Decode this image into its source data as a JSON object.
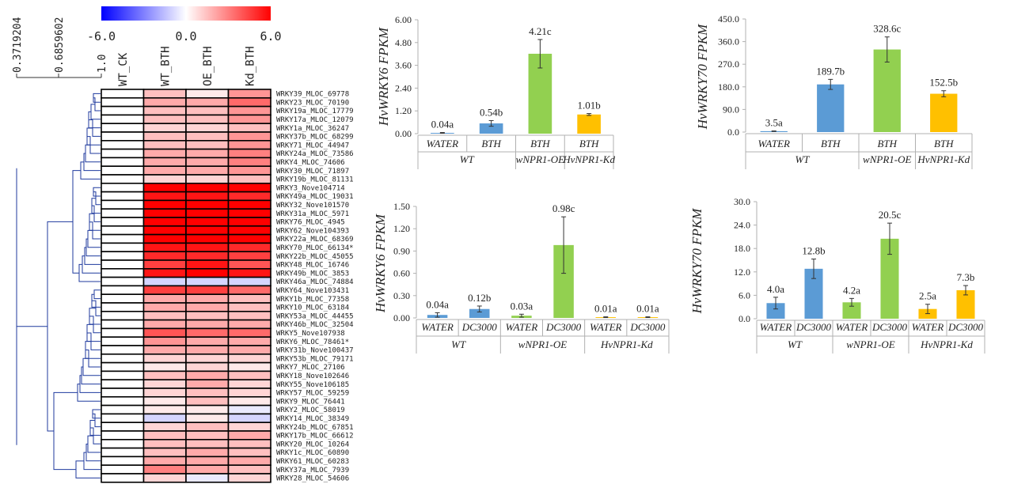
{
  "heatmap": {
    "colorbar_ticks": [
      "-6.0",
      "0.0",
      "6.0"
    ],
    "dendro_ticks": [
      "0.3719204",
      "0.6859602",
      "1.0"
    ],
    "columns": [
      "WT_CK",
      "WT_BTH",
      "OE_BTH",
      "Kd_BTH"
    ],
    "rows": [
      "WRKY39_MLOC_69778",
      "WRKY23_MLOC_70190",
      "WRKY19a_MLOC_17779",
      "WRKY17a_MLOC_12079",
      "WRKY1a_MLOC_36247",
      "WRKY37b_MLOC_68299",
      "WRKY71_MLOC_44947",
      "WRKY24a_MLOC_73586",
      "WRKY4_MLOC_74606",
      "WRKY30_MLOC_71897",
      "WRKY19b_MLOC_81131",
      "WRKY3_Nove104714",
      "WRKY49a_MLOC_19031",
      "WRKY32_Nove101570",
      "WRKY31a_MLOC_5971",
      "WRKY76_MLOC_4945",
      "WRKY62_Nove104393",
      "WRKY22a_MLOC_68369",
      "WRKY70_MLOC_66134*",
      "WRKY22b_MLOC_45055",
      "WRKY48_MLOC_16746",
      "WRKY49b_MLOC_3853",
      "WRKY46a_MLOC_74884",
      "WRKY64_Nove103431",
      "WRKY1b_MLOC_77358",
      "WRKY10_MLOC_63184",
      "WRKY53a_MLOC_44455",
      "WRKY46b_MLOC_32504",
      "WRKY5_Nove107938",
      "WRKY6_MLOC_78461*",
      "WRKY31b_Nove100437",
      "WRKY53b_MLOC_79171",
      "WRKY7_MLOC_27106",
      "WRKY18_Nove102646",
      "WRKY55_Nove106185",
      "WRKY57_MLOC_59259",
      "WRKY9_MLOC_76441",
      "WRKY2_MLOC_58019",
      "WRKY14_MLOC_38349",
      "WRKY24b_MLOC_67851",
      "WRKY17b_MLOC_66612",
      "WRKY20_MLOC_10264",
      "WRKY1c_MLOC_60890",
      "WRKY61_MLOC_60283",
      "WRKY37a_MLOC_7939",
      "WRKY28_MLOC_54606"
    ],
    "values": [
      [
        0,
        1.5,
        0.5,
        2.5
      ],
      [
        0,
        2.0,
        2.0,
        3.5
      ],
      [
        0,
        1.5,
        1.5,
        2.5
      ],
      [
        0,
        1.5,
        1.5,
        2.5
      ],
      [
        0,
        1.0,
        1.0,
        1.5
      ],
      [
        0,
        1.5,
        1.5,
        2.5
      ],
      [
        0,
        1.5,
        1.5,
        2.5
      ],
      [
        0,
        2.0,
        2.0,
        3.0
      ],
      [
        0,
        2.0,
        2.0,
        3.0
      ],
      [
        0,
        2.0,
        2.0,
        2.5
      ],
      [
        0,
        1.0,
        1.0,
        1.5
      ],
      [
        0,
        6.0,
        6.0,
        6.0
      ],
      [
        0,
        5.5,
        5.5,
        5.0
      ],
      [
        0,
        6.0,
        6.0,
        6.0
      ],
      [
        0,
        6.0,
        6.0,
        6.0
      ],
      [
        0,
        6.0,
        6.0,
        6.0
      ],
      [
        0,
        6.0,
        6.0,
        6.0
      ],
      [
        0,
        6.0,
        6.0,
        6.0
      ],
      [
        0,
        5.5,
        5.5,
        5.0
      ],
      [
        0,
        5.0,
        5.0,
        4.5
      ],
      [
        0,
        4.5,
        5.5,
        4.0
      ],
      [
        0,
        5.5,
        6.0,
        5.5
      ],
      [
        0,
        -1.0,
        -1.0,
        -1.0
      ],
      [
        0,
        4.5,
        4.5,
        3.5
      ],
      [
        0,
        2.0,
        2.0,
        1.5
      ],
      [
        0,
        2.0,
        2.0,
        1.5
      ],
      [
        0,
        1.5,
        1.5,
        1.5
      ],
      [
        0,
        2.0,
        2.0,
        2.0
      ],
      [
        0,
        4.0,
        3.5,
        3.5
      ],
      [
        0,
        2.5,
        2.0,
        2.0
      ],
      [
        0,
        2.0,
        2.0,
        2.0
      ],
      [
        0,
        1.0,
        1.0,
        1.0
      ],
      [
        0,
        0.5,
        1.0,
        0.5
      ],
      [
        0,
        1.5,
        2.0,
        1.5
      ],
      [
        0,
        1.0,
        2.0,
        1.0
      ],
      [
        0,
        1.0,
        1.5,
        1.0
      ],
      [
        0,
        0.5,
        1.5,
        0.5
      ],
      [
        0,
        0.5,
        0.5,
        -0.5
      ],
      [
        0,
        -1.0,
        0.5,
        -1.0
      ],
      [
        0,
        1.0,
        1.5,
        1.0
      ],
      [
        0,
        1.5,
        1.5,
        2.0
      ],
      [
        0,
        1.5,
        1.5,
        1.5
      ],
      [
        0,
        1.5,
        2.0,
        1.5
      ],
      [
        0,
        2.0,
        2.0,
        2.0
      ],
      [
        0,
        3.0,
        2.0,
        1.5
      ],
      [
        0,
        1.0,
        -0.5,
        1.0
      ]
    ]
  },
  "chart_data": [
    {
      "type": "bar",
      "ylabel": "HvWRKY6 FPKM",
      "ylim": [
        0,
        6
      ],
      "y_ticks": [
        "0.00",
        "1.20",
        "2.40",
        "3.60",
        "4.80",
        "6.00"
      ],
      "categories": [
        "WATER",
        "BTH",
        "BTH",
        "BTH"
      ],
      "groups": [
        "WT",
        "wNPR1-OE",
        "HvNPR1-Kd"
      ],
      "group_spans": [
        2,
        1,
        1
      ],
      "values": [
        0.04,
        0.54,
        4.21,
        1.01
      ],
      "errors": [
        0.02,
        0.15,
        0.75,
        0.05
      ],
      "labels": [
        "0.04a",
        "0.54b",
        "4.21c",
        "1.01b"
      ],
      "colors": [
        "#5b9bd5",
        "#5b9bd5",
        "#92d050",
        "#ffc000"
      ]
    },
    {
      "type": "bar",
      "ylabel": "HvWRKY70 FPKM",
      "ylim": [
        0,
        450
      ],
      "y_ticks": [
        "0.0",
        "90.0",
        "180.0",
        "270.0",
        "360.0",
        "450.0"
      ],
      "categories": [
        "WATER",
        "BTH",
        "BTH",
        "BTH"
      ],
      "groups": [
        "WT",
        "wNPR1-OE",
        "HvNPR1-Kd"
      ],
      "group_spans": [
        2,
        1,
        1
      ],
      "values": [
        3.5,
        189.7,
        328.6,
        152.5
      ],
      "errors": [
        1,
        20,
        50,
        12
      ],
      "labels": [
        "3.5a",
        "189.7b",
        "328.6c",
        "152.5b"
      ],
      "colors": [
        "#5b9bd5",
        "#5b9bd5",
        "#92d050",
        "#ffc000"
      ]
    },
    {
      "type": "bar",
      "ylabel": "HvWRKY6 FPKM",
      "ylim": [
        0,
        1.5
      ],
      "y_ticks": [
        "0.00",
        "0.30",
        "0.60",
        "0.90",
        "1.20",
        "1.50"
      ],
      "categories": [
        "WATER",
        "DC3000",
        "WATER",
        "DC3000",
        "WATER",
        "DC3000"
      ],
      "groups": [
        "WT",
        "wNPR1-OE",
        "HvNPR1-Kd"
      ],
      "group_spans": [
        2,
        2,
        2
      ],
      "values": [
        0.04,
        0.12,
        0.03,
        0.98,
        0.01,
        0.01
      ],
      "errors": [
        0.03,
        0.04,
        0.02,
        0.38,
        0.005,
        0.005
      ],
      "labels": [
        "0.04a",
        "0.12b",
        "0.03a",
        "0.98c",
        "0.01a",
        "0.01a"
      ],
      "colors": [
        "#5b9bd5",
        "#5b9bd5",
        "#92d050",
        "#92d050",
        "#ffc000",
        "#ffc000"
      ]
    },
    {
      "type": "bar",
      "ylabel": "HvWRKY70 FPKM",
      "ylim": [
        0,
        30
      ],
      "y_ticks": [
        "0.0",
        "6.0",
        "12.0",
        "18.0",
        "24.0",
        "30.0"
      ],
      "categories": [
        "WATER",
        "DC3000",
        "WATER",
        "DC3000",
        "WATER",
        "DC3000"
      ],
      "groups": [
        "WT",
        "wNPR1-OE",
        "HvNPR1-Kd"
      ],
      "group_spans": [
        2,
        2,
        2
      ],
      "values": [
        4.0,
        12.8,
        4.2,
        20.5,
        2.5,
        7.3
      ],
      "errors": [
        1.5,
        2.5,
        1.0,
        4.0,
        1.2,
        1.2
      ],
      "labels": [
        "4.0a",
        "12.8b",
        "4.2a",
        "20.5c",
        "2.5a",
        "7.3b"
      ],
      "colors": [
        "#5b9bd5",
        "#5b9bd5",
        "#92d050",
        "#92d050",
        "#ffc000",
        "#ffc000"
      ]
    }
  ]
}
